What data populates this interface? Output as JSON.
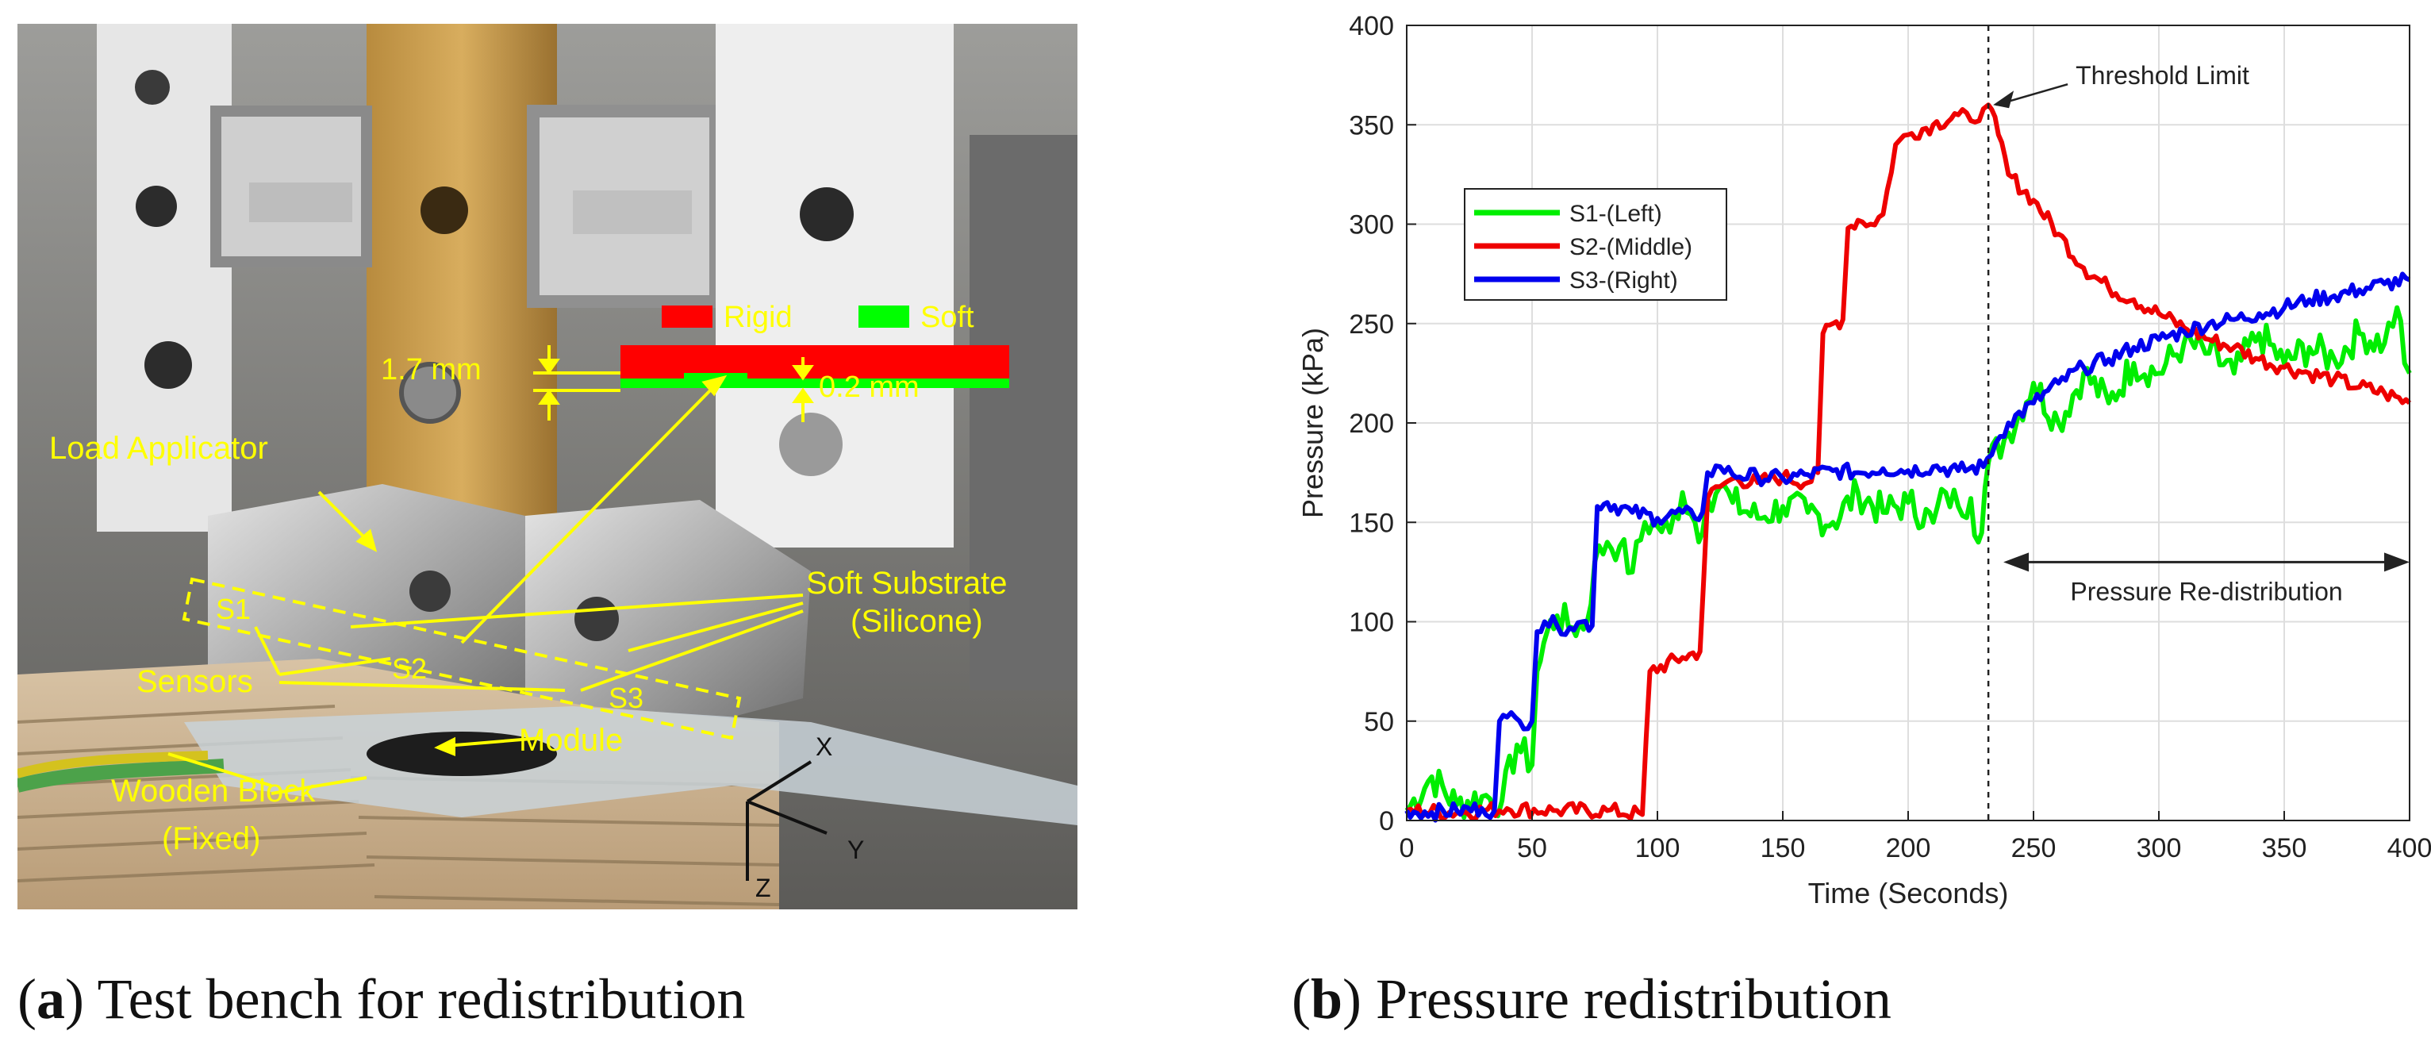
{
  "captions": {
    "a": {
      "label": "a",
      "text": "Test bench for redistribution"
    },
    "b": {
      "label": "b",
      "text": "Pressure redistribution"
    }
  },
  "photo": {
    "legend_rigid": "Rigid",
    "legend_soft": "Soft",
    "dim_17": "1.7 mm",
    "dim_02": "0.2 mm",
    "load_applicator": "Load Applicator",
    "soft_substrate_1": "Soft Substrate",
    "soft_substrate_2": "(Silicone)",
    "s1": "S1",
    "s2": "S2",
    "s3": "S3",
    "sensors": "Sensors",
    "module": "Module",
    "wooden_block_1": "Wooden Block",
    "wooden_block_2": "(Fixed)",
    "axis_x": "X",
    "axis_y": "Y",
    "axis_z": "Z",
    "colors": {
      "annotation": "#ffff00",
      "rigid": "#ff0000",
      "soft": "#00ff00"
    }
  },
  "chart_data": {
    "type": "line",
    "xlabel": "Time (Seconds)",
    "ylabel": "Pressure (kPa)",
    "xlim": [
      0,
      400
    ],
    "ylim": [
      0,
      400
    ],
    "xticks": [
      0,
      50,
      100,
      150,
      200,
      250,
      300,
      350,
      400
    ],
    "yticks": [
      0,
      50,
      100,
      150,
      200,
      250,
      300,
      350,
      400
    ],
    "grid": true,
    "legend_position": "upper-left",
    "threshold": {
      "x": 232,
      "y": 360,
      "label": "Threshold Limit"
    },
    "redistribution": {
      "x_start": 238,
      "x_end": 400,
      "y": 130,
      "label": "Pressure Re-distribution"
    },
    "series": [
      {
        "name": "S1-(Left)",
        "color": "#00ee00",
        "x": [
          0,
          10,
          20,
          30,
          38,
          44,
          50,
          52,
          56,
          60,
          66,
          72,
          75,
          80,
          85,
          90,
          95,
          100,
          105,
          110,
          115,
          118,
          120,
          125,
          130,
          140,
          150,
          160,
          170,
          180,
          190,
          200,
          210,
          215,
          220,
          225,
          228,
          232,
          240,
          250,
          260,
          270,
          280,
          290,
          300,
          310,
          320,
          330,
          340,
          350,
          360,
          370,
          380,
          390,
          395,
          398,
          400
        ],
        "y": [
          5,
          22,
          8,
          12,
          10,
          38,
          28,
          75,
          95,
          103,
          97,
          100,
          130,
          140,
          138,
          125,
          150,
          148,
          145,
          165,
          150,
          145,
          162,
          168,
          160,
          152,
          158,
          155,
          150,
          165,
          155,
          160,
          150,
          165,
          158,
          162,
          140,
          180,
          195,
          220,
          200,
          225,
          210,
          230,
          225,
          240,
          235,
          225,
          245,
          230,
          238,
          232,
          245,
          240,
          258,
          230,
          225
        ]
      },
      {
        "name": "S2-(Middle)",
        "color": "#ee0000",
        "x": [
          0,
          20,
          40,
          60,
          80,
          94,
          97,
          110,
          117,
          120,
          125,
          130,
          140,
          150,
          160,
          164,
          166,
          170,
          174,
          176,
          180,
          185,
          190,
          195,
          200,
          210,
          220,
          225,
          230,
          232,
          236,
          240,
          250,
          260,
          270,
          280,
          290,
          300,
          310,
          320,
          330,
          340,
          350,
          360,
          370,
          380,
          390,
          400
        ],
        "y": [
          5,
          4,
          6,
          5,
          5,
          3,
          75,
          82,
          85,
          162,
          168,
          172,
          170,
          173,
          170,
          175,
          245,
          250,
          252,
          298,
          302,
          300,
          305,
          340,
          345,
          350,
          355,
          352,
          358,
          360,
          345,
          325,
          312,
          295,
          278,
          268,
          262,
          255,
          248,
          242,
          238,
          232,
          228,
          225,
          222,
          218,
          215,
          210
        ]
      },
      {
        "name": "S3-(Right)",
        "color": "#0000ee",
        "x": [
          0,
          10,
          20,
          30,
          35,
          37,
          40,
          45,
          50,
          52,
          55,
          60,
          65,
          70,
          74,
          76,
          80,
          90,
          100,
          110,
          115,
          118,
          120,
          125,
          130,
          140,
          150,
          160,
          170,
          180,
          190,
          200,
          210,
          220,
          230,
          235,
          240,
          250,
          260,
          270,
          280,
          290,
          300,
          310,
          320,
          330,
          340,
          350,
          360,
          370,
          380,
          390,
          400
        ],
        "y": [
          5,
          4,
          5,
          6,
          5,
          50,
          52,
          50,
          50,
          95,
          100,
          98,
          97,
          100,
          98,
          158,
          160,
          155,
          152,
          155,
          152,
          155,
          175,
          178,
          174,
          173,
          172,
          174,
          176,
          175,
          177,
          176,
          178,
          176,
          178,
          190,
          200,
          210,
          220,
          228,
          232,
          238,
          242,
          246,
          250,
          252,
          255,
          258,
          262,
          264,
          267,
          270,
          272
        ]
      }
    ]
  }
}
